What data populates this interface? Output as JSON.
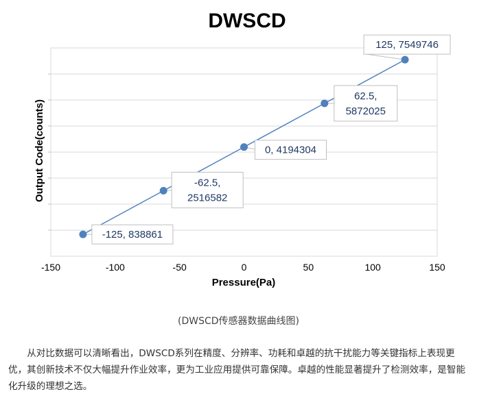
{
  "chart_data": {
    "type": "scatter",
    "title": "DWSCD",
    "xlabel": "Pressure(Pa)",
    "ylabel": "Output Code(counts)",
    "xlim": [
      -150,
      150
    ],
    "xticks": [
      -150,
      -100,
      -50,
      0,
      50,
      100,
      150
    ],
    "ylim": [
      0,
      8000000
    ],
    "grid": true,
    "line_connected": true,
    "series_color": "#4f81bd",
    "points": [
      {
        "x": -125,
        "y": 838861,
        "label": "-125, 838861"
      },
      {
        "x": -62.5,
        "y": 2516582,
        "label": "-62.5, 2516582"
      },
      {
        "x": 0,
        "y": 4194304,
        "label": "0, 4194304"
      },
      {
        "x": 62.5,
        "y": 5872025,
        "label": "62.5, 5872025"
      },
      {
        "x": 125,
        "y": 7549746,
        "label": "125, 7549746"
      }
    ]
  },
  "caption": "(DWSCD传感器数据曲线图)",
  "paragraph": "从对比数据可以清晰看出，DWSCD系列在精度、分辨率、功耗和卓越的抗干扰能力等关键指标上表现更优，其创新技术不仅大幅提升作业效率，更为工业应用提供可靠保障。卓越的性能显著提升了检测效率，是智能化升级的理想之选。"
}
